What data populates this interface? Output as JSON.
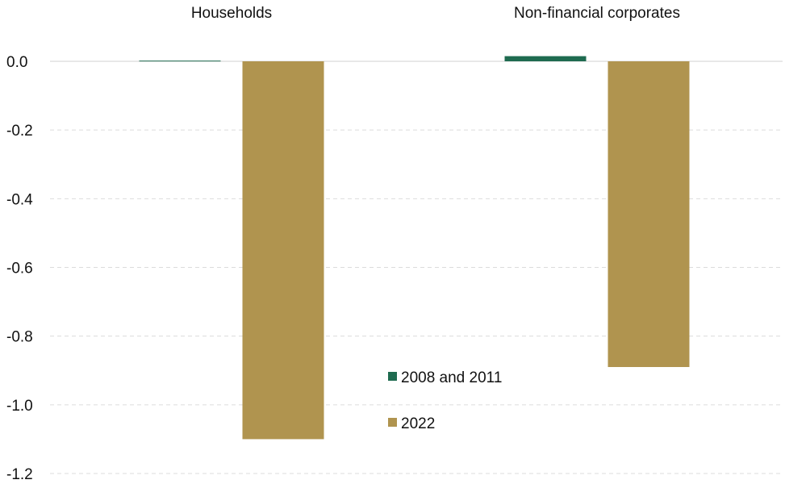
{
  "chart_data": {
    "type": "bar",
    "categories": [
      "Households",
      "Non-financial corporates"
    ],
    "series": [
      {
        "name": "2008 and 2011",
        "color": "#1f6b50",
        "values": [
          0.002,
          0.015
        ]
      },
      {
        "name": "2022",
        "color": "#b0944f",
        "values": [
          -1.1,
          -0.89
        ]
      }
    ],
    "ylim": [
      -1.2,
      0.0
    ],
    "yticks": [
      0.0,
      -0.2,
      -0.4,
      -0.6,
      -0.8,
      -1.0,
      -1.2
    ],
    "ytick_labels": [
      "0.0",
      "-0.2",
      "-0.4",
      "-0.6",
      "-0.8",
      "-1.0",
      "-1.2"
    ],
    "grid": true,
    "legend_position": "center"
  }
}
